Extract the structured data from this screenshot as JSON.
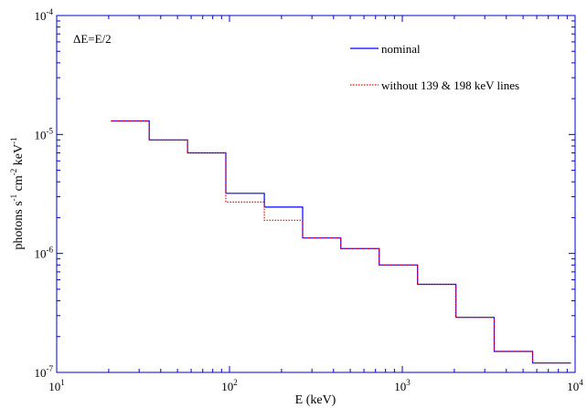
{
  "chart_data": {
    "type": "line",
    "step": true,
    "x_scale": "log",
    "y_scale": "log",
    "xlim": [
      10,
      10000
    ],
    "ylim": [
      1e-07,
      0.0001
    ],
    "xlabel": "E (keV)",
    "ylabel": "photons s-1 cm-2 keV-1",
    "annotation": "ΔE=E/2",
    "legend_position": "top-right",
    "x_ticks": [
      {
        "base": "10",
        "exp": "1",
        "value": 10
      },
      {
        "base": "10",
        "exp": "2",
        "value": 100
      },
      {
        "base": "10",
        "exp": "3",
        "value": 1000
      },
      {
        "base": "10",
        "exp": "4",
        "value": 10000
      }
    ],
    "y_ticks": [
      {
        "base": "10",
        "exp": "-7",
        "value": 1e-07
      },
      {
        "base": "10",
        "exp": "-6",
        "value": 1e-06
      },
      {
        "base": "10",
        "exp": "-5",
        "value": 1e-05
      },
      {
        "base": "10",
        "exp": "-4",
        "value": 0.0001
      }
    ],
    "bin_edges": [
      20.6,
      34.3,
      57.2,
      95.3,
      159,
      265,
      441,
      735,
      1225,
      2042,
      3403,
      5672,
      9453
    ],
    "series": [
      {
        "name": "nominal",
        "color": "#0000ff",
        "style": "solid",
        "values": [
          1.3e-05,
          9e-06,
          7e-06,
          3.2e-06,
          2.45e-06,
          1.35e-06,
          1.1e-06,
          8e-07,
          5.5e-07,
          2.9e-07,
          1.5e-07,
          1.2e-07
        ]
      },
      {
        "name": "without 139 & 198 keV lines",
        "color": "#ff0000",
        "style": "dotted",
        "values": [
          1.3e-05,
          9e-06,
          7e-06,
          2.7e-06,
          1.9e-06,
          1.35e-06,
          1.1e-06,
          8e-07,
          5.5e-07,
          2.9e-07,
          1.5e-07,
          1.2e-07
        ]
      }
    ]
  }
}
